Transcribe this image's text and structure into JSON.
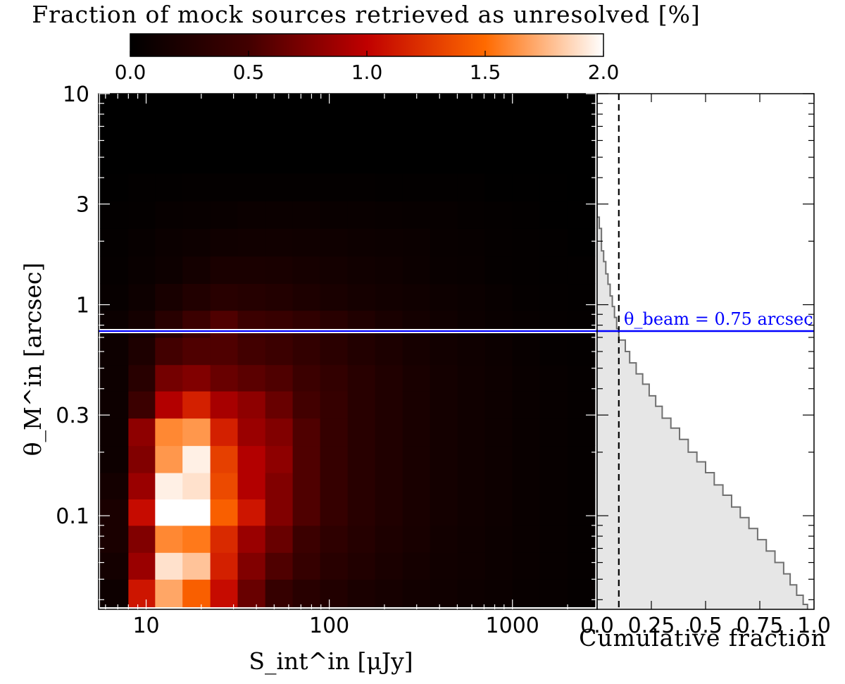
{
  "chart_data": [
    {
      "type": "heatmap",
      "title": "Fraction of mock sources retrieved as unresolved [%]",
      "xlabel": "S_int^in [μJy]",
      "ylabel": "θ_M^in [arcsec]",
      "xscale": "log",
      "yscale": "log",
      "xlim": [
        5.5,
        2900
      ],
      "ylim": [
        0.036,
        10
      ],
      "xticks": [
        "10",
        "100",
        "1000"
      ],
      "yticks": [
        "0.1",
        "0.3",
        "1",
        "3",
        "10"
      ],
      "colorbar": {
        "label": "Fraction of mock sources retrieved as unresolved [%]",
        "range": [
          0.0,
          2.0
        ],
        "ticks": [
          "0.0",
          "0.5",
          "1.0",
          "1.5",
          "2.0"
        ],
        "colormap": "gist_heat"
      },
      "beam_line": {
        "theta": 0.75,
        "label": "θ_beam = 0.75 arcsec",
        "color": "#0000ff"
      },
      "x_bin_edges": [
        5.6,
        8,
        11.2,
        15.8,
        22.4,
        31.6,
        44.7,
        63.1,
        89.1,
        125.9,
        177.8,
        251.2,
        354.8,
        501.2,
        707.9,
        1000,
        1412.5,
        1995.3,
        2818.4
      ],
      "y_bin_edges": [
        0.037,
        0.05,
        0.067,
        0.09,
        0.12,
        0.16,
        0.215,
        0.29,
        0.39,
        0.52,
        0.7,
        0.94,
        1.26,
        1.7,
        2.3,
        3.1,
        4.2,
        10
      ],
      "values": [
        [
          0.1,
          1.1,
          1.7,
          1.45,
          1.05,
          0.65,
          0.4,
          0.3,
          0.25,
          0.2,
          0.17,
          0.14,
          0.12,
          0.1,
          0.08,
          0.06,
          0.05,
          0.04
        ],
        [
          0.15,
          0.85,
          1.9,
          1.8,
          1.15,
          0.75,
          0.55,
          0.4,
          0.3,
          0.25,
          0.2,
          0.16,
          0.13,
          0.11,
          0.09,
          0.07,
          0.05,
          0.04
        ],
        [
          0.2,
          0.75,
          1.6,
          1.55,
          1.2,
          0.85,
          0.65,
          0.45,
          0.35,
          0.28,
          0.22,
          0.18,
          0.14,
          0.11,
          0.09,
          0.07,
          0.05,
          0.04
        ],
        [
          0.2,
          1.05,
          2.0,
          2.0,
          1.45,
          1.1,
          0.75,
          0.55,
          0.4,
          0.3,
          0.24,
          0.19,
          0.15,
          0.12,
          0.1,
          0.07,
          0.05,
          0.04
        ],
        [
          0.15,
          0.85,
          1.95,
          1.9,
          1.35,
          0.95,
          0.75,
          0.55,
          0.4,
          0.3,
          0.24,
          0.19,
          0.15,
          0.12,
          0.1,
          0.07,
          0.05,
          0.04
        ],
        [
          0.1,
          0.75,
          1.65,
          1.95,
          1.3,
          0.95,
          0.8,
          0.55,
          0.4,
          0.3,
          0.24,
          0.19,
          0.15,
          0.12,
          0.1,
          0.07,
          0.05,
          0.04
        ],
        [
          0.1,
          0.8,
          1.6,
          1.65,
          1.15,
          0.85,
          0.75,
          0.55,
          0.4,
          0.3,
          0.24,
          0.19,
          0.15,
          0.12,
          0.1,
          0.07,
          0.05,
          0.04
        ],
        [
          0.1,
          0.45,
          0.95,
          1.15,
          0.9,
          0.8,
          0.65,
          0.5,
          0.4,
          0.3,
          0.24,
          0.19,
          0.15,
          0.12,
          0.1,
          0.07,
          0.05,
          0.04
        ],
        [
          0.1,
          0.3,
          0.7,
          0.75,
          0.65,
          0.6,
          0.55,
          0.45,
          0.38,
          0.3,
          0.24,
          0.19,
          0.15,
          0.12,
          0.1,
          0.07,
          0.05,
          0.04
        ],
        [
          0.1,
          0.22,
          0.5,
          0.55,
          0.55,
          0.5,
          0.45,
          0.38,
          0.32,
          0.26,
          0.21,
          0.17,
          0.14,
          0.11,
          0.09,
          0.06,
          0.04,
          0.03
        ],
        [
          0.08,
          0.15,
          0.3,
          0.45,
          0.55,
          0.45,
          0.42,
          0.36,
          0.3,
          0.24,
          0.19,
          0.15,
          0.12,
          0.09,
          0.07,
          0.05,
          0.04,
          0.03
        ],
        [
          0.05,
          0.1,
          0.18,
          0.25,
          0.3,
          0.28,
          0.26,
          0.22,
          0.19,
          0.16,
          0.14,
          0.12,
          0.1,
          0.08,
          0.06,
          0.04,
          0.03,
          0.02
        ],
        [
          0.04,
          0.07,
          0.1,
          0.15,
          0.2,
          0.2,
          0.19,
          0.17,
          0.15,
          0.13,
          0.11,
          0.09,
          0.07,
          0.06,
          0.04,
          0.03,
          0.02,
          0.02
        ],
        [
          0.03,
          0.05,
          0.08,
          0.1,
          0.12,
          0.13,
          0.13,
          0.12,
          0.11,
          0.1,
          0.09,
          0.08,
          0.06,
          0.05,
          0.04,
          0.03,
          0.02,
          0.01
        ],
        [
          0.02,
          0.03,
          0.05,
          0.06,
          0.07,
          0.08,
          0.08,
          0.08,
          0.07,
          0.07,
          0.06,
          0.05,
          0.05,
          0.04,
          0.03,
          0.02,
          0.01,
          0.01
        ],
        [
          0.01,
          0.02,
          0.02,
          0.03,
          0.03,
          0.03,
          0.03,
          0.03,
          0.03,
          0.03,
          0.02,
          0.02,
          0.02,
          0.02,
          0.01,
          0.01,
          0.01,
          0.0
        ],
        [
          0.0,
          0.0,
          0.0,
          0.0,
          0.0,
          0.0,
          0.0,
          0.0,
          0.0,
          0.0,
          0.0,
          0.0,
          0.0,
          0.0,
          0.0,
          0.0,
          0.0,
          0.0
        ]
      ]
    },
    {
      "type": "line",
      "subtype": "step",
      "xlabel": "Cumulative fraction",
      "xlim": [
        0.0,
        1.0
      ],
      "xticks": [
        "0.0",
        "0.25",
        "0.5",
        "0.75",
        "1.0"
      ],
      "ylim": [
        0.036,
        10
      ],
      "yscale": "log",
      "fill_color": "#e6e6e6",
      "line_color": "#707070",
      "vline": {
        "x": 0.1,
        "style": "dashed",
        "color": "#000000"
      },
      "points": [
        {
          "theta": 2.9,
          "cum": 0.0
        },
        {
          "theta": 2.6,
          "cum": 0.01
        },
        {
          "theta": 2.3,
          "cum": 0.02
        },
        {
          "theta": 2.0,
          "cum": 0.02
        },
        {
          "theta": 1.8,
          "cum": 0.03
        },
        {
          "theta": 1.6,
          "cum": 0.04
        },
        {
          "theta": 1.4,
          "cum": 0.05
        },
        {
          "theta": 1.25,
          "cum": 0.06
        },
        {
          "theta": 1.1,
          "cum": 0.07
        },
        {
          "theta": 0.98,
          "cum": 0.08
        },
        {
          "theta": 0.87,
          "cum": 0.09
        },
        {
          "theta": 0.77,
          "cum": 0.1
        },
        {
          "theta": 0.68,
          "cum": 0.13
        },
        {
          "theta": 0.6,
          "cum": 0.15
        },
        {
          "theta": 0.53,
          "cum": 0.18
        },
        {
          "theta": 0.47,
          "cum": 0.21
        },
        {
          "theta": 0.42,
          "cum": 0.24
        },
        {
          "theta": 0.37,
          "cum": 0.27
        },
        {
          "theta": 0.33,
          "cum": 0.3
        },
        {
          "theta": 0.29,
          "cum": 0.34
        },
        {
          "theta": 0.26,
          "cum": 0.38
        },
        {
          "theta": 0.23,
          "cum": 0.42
        },
        {
          "theta": 0.2,
          "cum": 0.46
        },
        {
          "theta": 0.18,
          "cum": 0.5
        },
        {
          "theta": 0.16,
          "cum": 0.54
        },
        {
          "theta": 0.14,
          "cum": 0.58
        },
        {
          "theta": 0.125,
          "cum": 0.62
        },
        {
          "theta": 0.11,
          "cum": 0.66
        },
        {
          "theta": 0.098,
          "cum": 0.7
        },
        {
          "theta": 0.087,
          "cum": 0.74
        },
        {
          "theta": 0.077,
          "cum": 0.78
        },
        {
          "theta": 0.068,
          "cum": 0.82
        },
        {
          "theta": 0.06,
          "cum": 0.86
        },
        {
          "theta": 0.053,
          "cum": 0.89
        },
        {
          "theta": 0.047,
          "cum": 0.92
        },
        {
          "theta": 0.042,
          "cum": 0.95
        },
        {
          "theta": 0.038,
          "cum": 0.97
        }
      ]
    }
  ]
}
